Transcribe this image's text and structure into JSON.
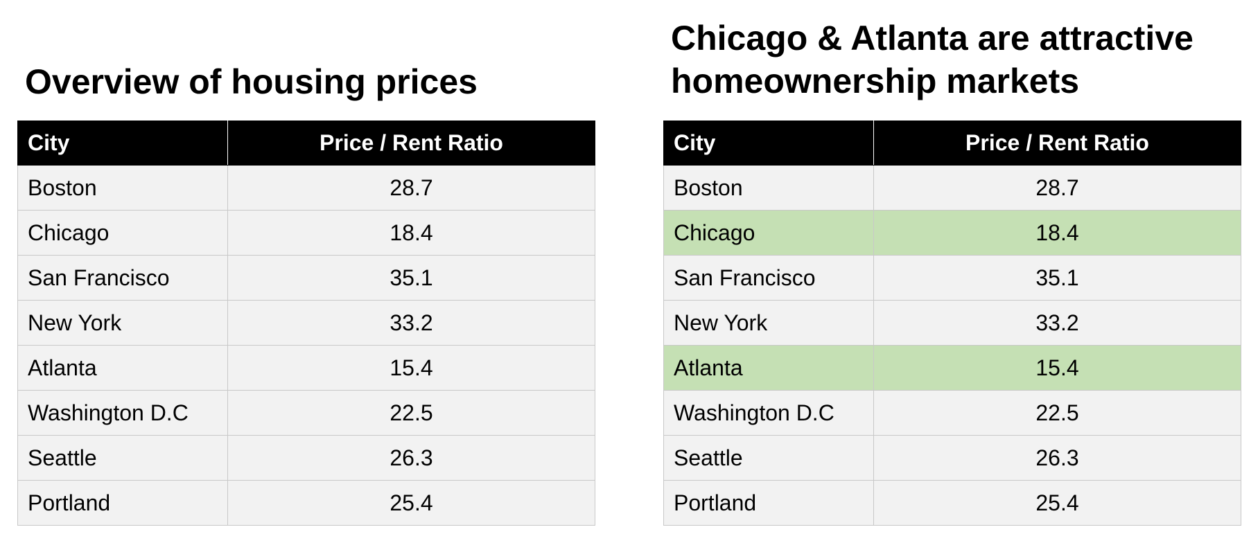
{
  "colors": {
    "header_bg": "#000000",
    "header_text": "#ffffff",
    "row_bg": "#f2f2f2",
    "highlight_bg": "#c5e0b4",
    "border": "#c8c8c8"
  },
  "left": {
    "title": "Overview of housing prices",
    "headers": {
      "city": "City",
      "ratio": "Price / Rent Ratio"
    },
    "rows": [
      {
        "city": "Boston",
        "ratio": "28.7"
      },
      {
        "city": "Chicago",
        "ratio": "18.4"
      },
      {
        "city": "San Francisco",
        "ratio": "35.1"
      },
      {
        "city": "New York",
        "ratio": "33.2"
      },
      {
        "city": "Atlanta",
        "ratio": "15.4"
      },
      {
        "city": "Washington D.C",
        "ratio": "22.5"
      },
      {
        "city": "Seattle",
        "ratio": "26.3"
      },
      {
        "city": "Portland",
        "ratio": "25.4"
      }
    ]
  },
  "right": {
    "title_line1": "Chicago & Atlanta are attractive",
    "title_line2": "homeownership markets",
    "headers": {
      "city": "City",
      "ratio": "Price / Rent Ratio"
    },
    "rows": [
      {
        "city": "Boston",
        "ratio": "28.7",
        "highlighted": false
      },
      {
        "city": "Chicago",
        "ratio": "18.4",
        "highlighted": true
      },
      {
        "city": "San Francisco",
        "ratio": "35.1",
        "highlighted": false
      },
      {
        "city": "New York",
        "ratio": "33.2",
        "highlighted": false
      },
      {
        "city": "Atlanta",
        "ratio": "15.4",
        "highlighted": true
      },
      {
        "city": "Washington D.C",
        "ratio": "22.5",
        "highlighted": false
      },
      {
        "city": "Seattle",
        "ratio": "26.3",
        "highlighted": false
      },
      {
        "city": "Portland",
        "ratio": "25.4",
        "highlighted": false
      }
    ]
  }
}
